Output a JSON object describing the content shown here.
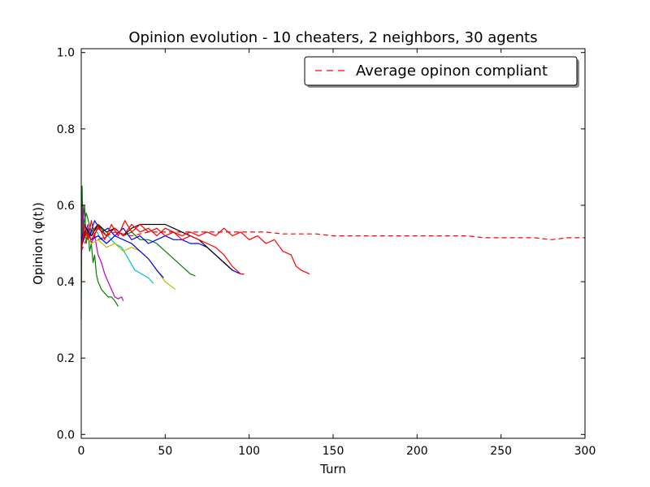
{
  "chart_data": {
    "type": "line",
    "title": "Opinion evolution - 10 cheaters, 2 neighbors, 30 agents",
    "xlabel": "Turn",
    "ylabel": "Opinion (φ(t))",
    "xlim": [
      0,
      300
    ],
    "ylim": [
      -0.01,
      1.01
    ],
    "xticks": [
      0,
      50,
      100,
      150,
      200,
      250,
      300
    ],
    "yticks": [
      0.0,
      0.2,
      0.4,
      0.6,
      0.8,
      1.0
    ],
    "xtick_labels": [
      "0",
      "50",
      "100",
      "150",
      "200",
      "250",
      "300"
    ],
    "ytick_labels": [
      "0.0",
      "0.2",
      "0.4",
      "0.6",
      "0.8",
      "1.0"
    ],
    "grid": false,
    "legend": {
      "position": "top-right",
      "entries": [
        {
          "label": "Average opinon compliant",
          "color": "#ff0000",
          "style": "dashed"
        }
      ]
    },
    "series": [
      {
        "name": "Average opinon compliant",
        "color": "#ff0000",
        "style": "dashed",
        "points": [
          [
            0,
            0.48
          ],
          [
            5,
            0.53
          ],
          [
            10,
            0.51
          ],
          [
            20,
            0.53
          ],
          [
            30,
            0.52
          ],
          [
            40,
            0.53
          ],
          [
            50,
            0.53
          ],
          [
            60,
            0.53
          ],
          [
            70,
            0.53
          ],
          [
            80,
            0.53
          ],
          [
            90,
            0.53
          ],
          [
            100,
            0.53
          ],
          [
            110,
            0.53
          ],
          [
            120,
            0.525
          ],
          [
            130,
            0.525
          ],
          [
            140,
            0.525
          ],
          [
            150,
            0.52
          ],
          [
            160,
            0.52
          ],
          [
            170,
            0.52
          ],
          [
            180,
            0.52
          ],
          [
            190,
            0.52
          ],
          [
            200,
            0.52
          ],
          [
            210,
            0.52
          ],
          [
            220,
            0.52
          ],
          [
            230,
            0.52
          ],
          [
            240,
            0.515
          ],
          [
            250,
            0.515
          ],
          [
            260,
            0.515
          ],
          [
            270,
            0.515
          ],
          [
            280,
            0.51
          ],
          [
            290,
            0.515
          ],
          [
            300,
            0.515
          ]
        ]
      },
      {
        "color": "#008000",
        "style": "solid",
        "points": [
          [
            0,
            0.3
          ],
          [
            0.5,
            0.65
          ],
          [
            1,
            0.55
          ],
          [
            2,
            0.6
          ],
          [
            3,
            0.5
          ],
          [
            4,
            0.54
          ],
          [
            5,
            0.48
          ],
          [
            6,
            0.5
          ],
          [
            7,
            0.45
          ],
          [
            8,
            0.47
          ],
          [
            9,
            0.42
          ],
          [
            10,
            0.4
          ],
          [
            12,
            0.38
          ],
          [
            14,
            0.37
          ],
          [
            16,
            0.36
          ],
          [
            18,
            0.36
          ],
          [
            20,
            0.35
          ],
          [
            22,
            0.335
          ]
        ]
      },
      {
        "color": "#bf00bf",
        "style": "solid",
        "points": [
          [
            0,
            0.45
          ],
          [
            1,
            0.6
          ],
          [
            2,
            0.52
          ],
          [
            4,
            0.55
          ],
          [
            6,
            0.5
          ],
          [
            8,
            0.52
          ],
          [
            10,
            0.47
          ],
          [
            12,
            0.45
          ],
          [
            14,
            0.42
          ],
          [
            16,
            0.4
          ],
          [
            18,
            0.38
          ],
          [
            20,
            0.36
          ],
          [
            22,
            0.355
          ],
          [
            24,
            0.36
          ],
          [
            25,
            0.35
          ]
        ]
      },
      {
        "color": "#00bfbf",
        "style": "solid",
        "points": [
          [
            0,
            0.48
          ],
          [
            2,
            0.55
          ],
          [
            5,
            0.52
          ],
          [
            8,
            0.54
          ],
          [
            12,
            0.51
          ],
          [
            16,
            0.52
          ],
          [
            20,
            0.5
          ],
          [
            24,
            0.49
          ],
          [
            28,
            0.46
          ],
          [
            32,
            0.43
          ],
          [
            36,
            0.42
          ],
          [
            40,
            0.41
          ],
          [
            43,
            0.395
          ]
        ]
      },
      {
        "color": "#bfbf00",
        "style": "solid",
        "points": [
          [
            0,
            0.5
          ],
          [
            3,
            0.52
          ],
          [
            6,
            0.5
          ],
          [
            10,
            0.51
          ],
          [
            15,
            0.49
          ],
          [
            20,
            0.5
          ],
          [
            25,
            0.48
          ],
          [
            30,
            0.49
          ],
          [
            35,
            0.48
          ],
          [
            40,
            0.46
          ],
          [
            45,
            0.43
          ],
          [
            50,
            0.4
          ],
          [
            53,
            0.39
          ],
          [
            56,
            0.38
          ]
        ]
      },
      {
        "color": "#008000",
        "style": "solid",
        "points": [
          [
            0,
            0.52
          ],
          [
            3,
            0.58
          ],
          [
            6,
            0.53
          ],
          [
            10,
            0.55
          ],
          [
            15,
            0.52
          ],
          [
            20,
            0.54
          ],
          [
            25,
            0.52
          ],
          [
            30,
            0.53
          ],
          [
            35,
            0.51
          ],
          [
            40,
            0.51
          ],
          [
            45,
            0.5
          ],
          [
            50,
            0.48
          ],
          [
            55,
            0.46
          ],
          [
            60,
            0.44
          ],
          [
            65,
            0.42
          ],
          [
            68,
            0.415
          ]
        ]
      },
      {
        "color": "#0000ff",
        "style": "solid",
        "points": [
          [
            0,
            0.5
          ],
          [
            2,
            0.55
          ],
          [
            5,
            0.52
          ],
          [
            8,
            0.56
          ],
          [
            12,
            0.53
          ],
          [
            16,
            0.54
          ],
          [
            20,
            0.52
          ],
          [
            25,
            0.54
          ],
          [
            30,
            0.51
          ],
          [
            35,
            0.52
          ],
          [
            40,
            0.5
          ],
          [
            45,
            0.51
          ],
          [
            50,
            0.52
          ],
          [
            55,
            0.51
          ],
          [
            60,
            0.51
          ],
          [
            65,
            0.5
          ],
          [
            70,
            0.5
          ],
          [
            75,
            0.49
          ],
          [
            80,
            0.47
          ],
          [
            85,
            0.45
          ],
          [
            90,
            0.43
          ],
          [
            95,
            0.42
          ]
        ]
      },
      {
        "color": "#0000ff",
        "style": "solid",
        "points": [
          [
            0,
            0.49
          ],
          [
            3,
            0.53
          ],
          [
            6,
            0.51
          ],
          [
            10,
            0.52
          ],
          [
            15,
            0.5
          ],
          [
            20,
            0.52
          ],
          [
            25,
            0.51
          ],
          [
            30,
            0.5
          ],
          [
            35,
            0.48
          ],
          [
            40,
            0.46
          ],
          [
            45,
            0.43
          ],
          [
            49,
            0.41
          ]
        ]
      },
      {
        "color": "#000000",
        "style": "solid",
        "points": [
          [
            0,
            0.5
          ],
          [
            3,
            0.54
          ],
          [
            6,
            0.52
          ],
          [
            10,
            0.55
          ],
          [
            15,
            0.53
          ],
          [
            20,
            0.54
          ],
          [
            25,
            0.52
          ],
          [
            30,
            0.54
          ],
          [
            35,
            0.55
          ],
          [
            40,
            0.55
          ],
          [
            45,
            0.55
          ],
          [
            50,
            0.55
          ],
          [
            55,
            0.54
          ],
          [
            60,
            0.53
          ],
          [
            65,
            0.52
          ],
          [
            70,
            0.51
          ],
          [
            75,
            0.49
          ],
          [
            80,
            0.47
          ],
          [
            85,
            0.45
          ],
          [
            90,
            0.43
          ]
        ]
      },
      {
        "color": "#ff0000",
        "style": "solid",
        "points": [
          [
            0,
            0.48
          ],
          [
            2,
            0.55
          ],
          [
            4,
            0.51
          ],
          [
            6,
            0.56
          ],
          [
            8,
            0.52
          ],
          [
            10,
            0.55
          ],
          [
            14,
            0.51
          ],
          [
            18,
            0.55
          ],
          [
            22,
            0.52
          ],
          [
            26,
            0.56
          ],
          [
            30,
            0.53
          ],
          [
            35,
            0.55
          ],
          [
            40,
            0.53
          ],
          [
            45,
            0.54
          ],
          [
            50,
            0.52
          ],
          [
            55,
            0.53
          ],
          [
            60,
            0.51
          ],
          [
            65,
            0.52
          ],
          [
            70,
            0.51
          ],
          [
            75,
            0.5
          ],
          [
            80,
            0.49
          ],
          [
            85,
            0.47
          ],
          [
            90,
            0.44
          ],
          [
            95,
            0.42
          ],
          [
            97,
            0.42
          ]
        ]
      },
      {
        "color": "#ff0000",
        "style": "solid",
        "points": [
          [
            0,
            0.5
          ],
          [
            3,
            0.53
          ],
          [
            6,
            0.51
          ],
          [
            10,
            0.54
          ],
          [
            15,
            0.52
          ],
          [
            20,
            0.54
          ],
          [
            25,
            0.52
          ],
          [
            30,
            0.55
          ],
          [
            35,
            0.53
          ],
          [
            40,
            0.54
          ],
          [
            45,
            0.52
          ],
          [
            50,
            0.54
          ],
          [
            55,
            0.53
          ],
          [
            60,
            0.52
          ],
          [
            65,
            0.53
          ],
          [
            70,
            0.52
          ],
          [
            75,
            0.53
          ],
          [
            80,
            0.52
          ],
          [
            85,
            0.54
          ],
          [
            90,
            0.52
          ],
          [
            95,
            0.53
          ],
          [
            100,
            0.51
          ],
          [
            105,
            0.52
          ],
          [
            110,
            0.5
          ],
          [
            115,
            0.51
          ],
          [
            120,
            0.48
          ],
          [
            125,
            0.47
          ],
          [
            128,
            0.44
          ],
          [
            131,
            0.43
          ],
          [
            136,
            0.42
          ]
        ]
      }
    ]
  }
}
